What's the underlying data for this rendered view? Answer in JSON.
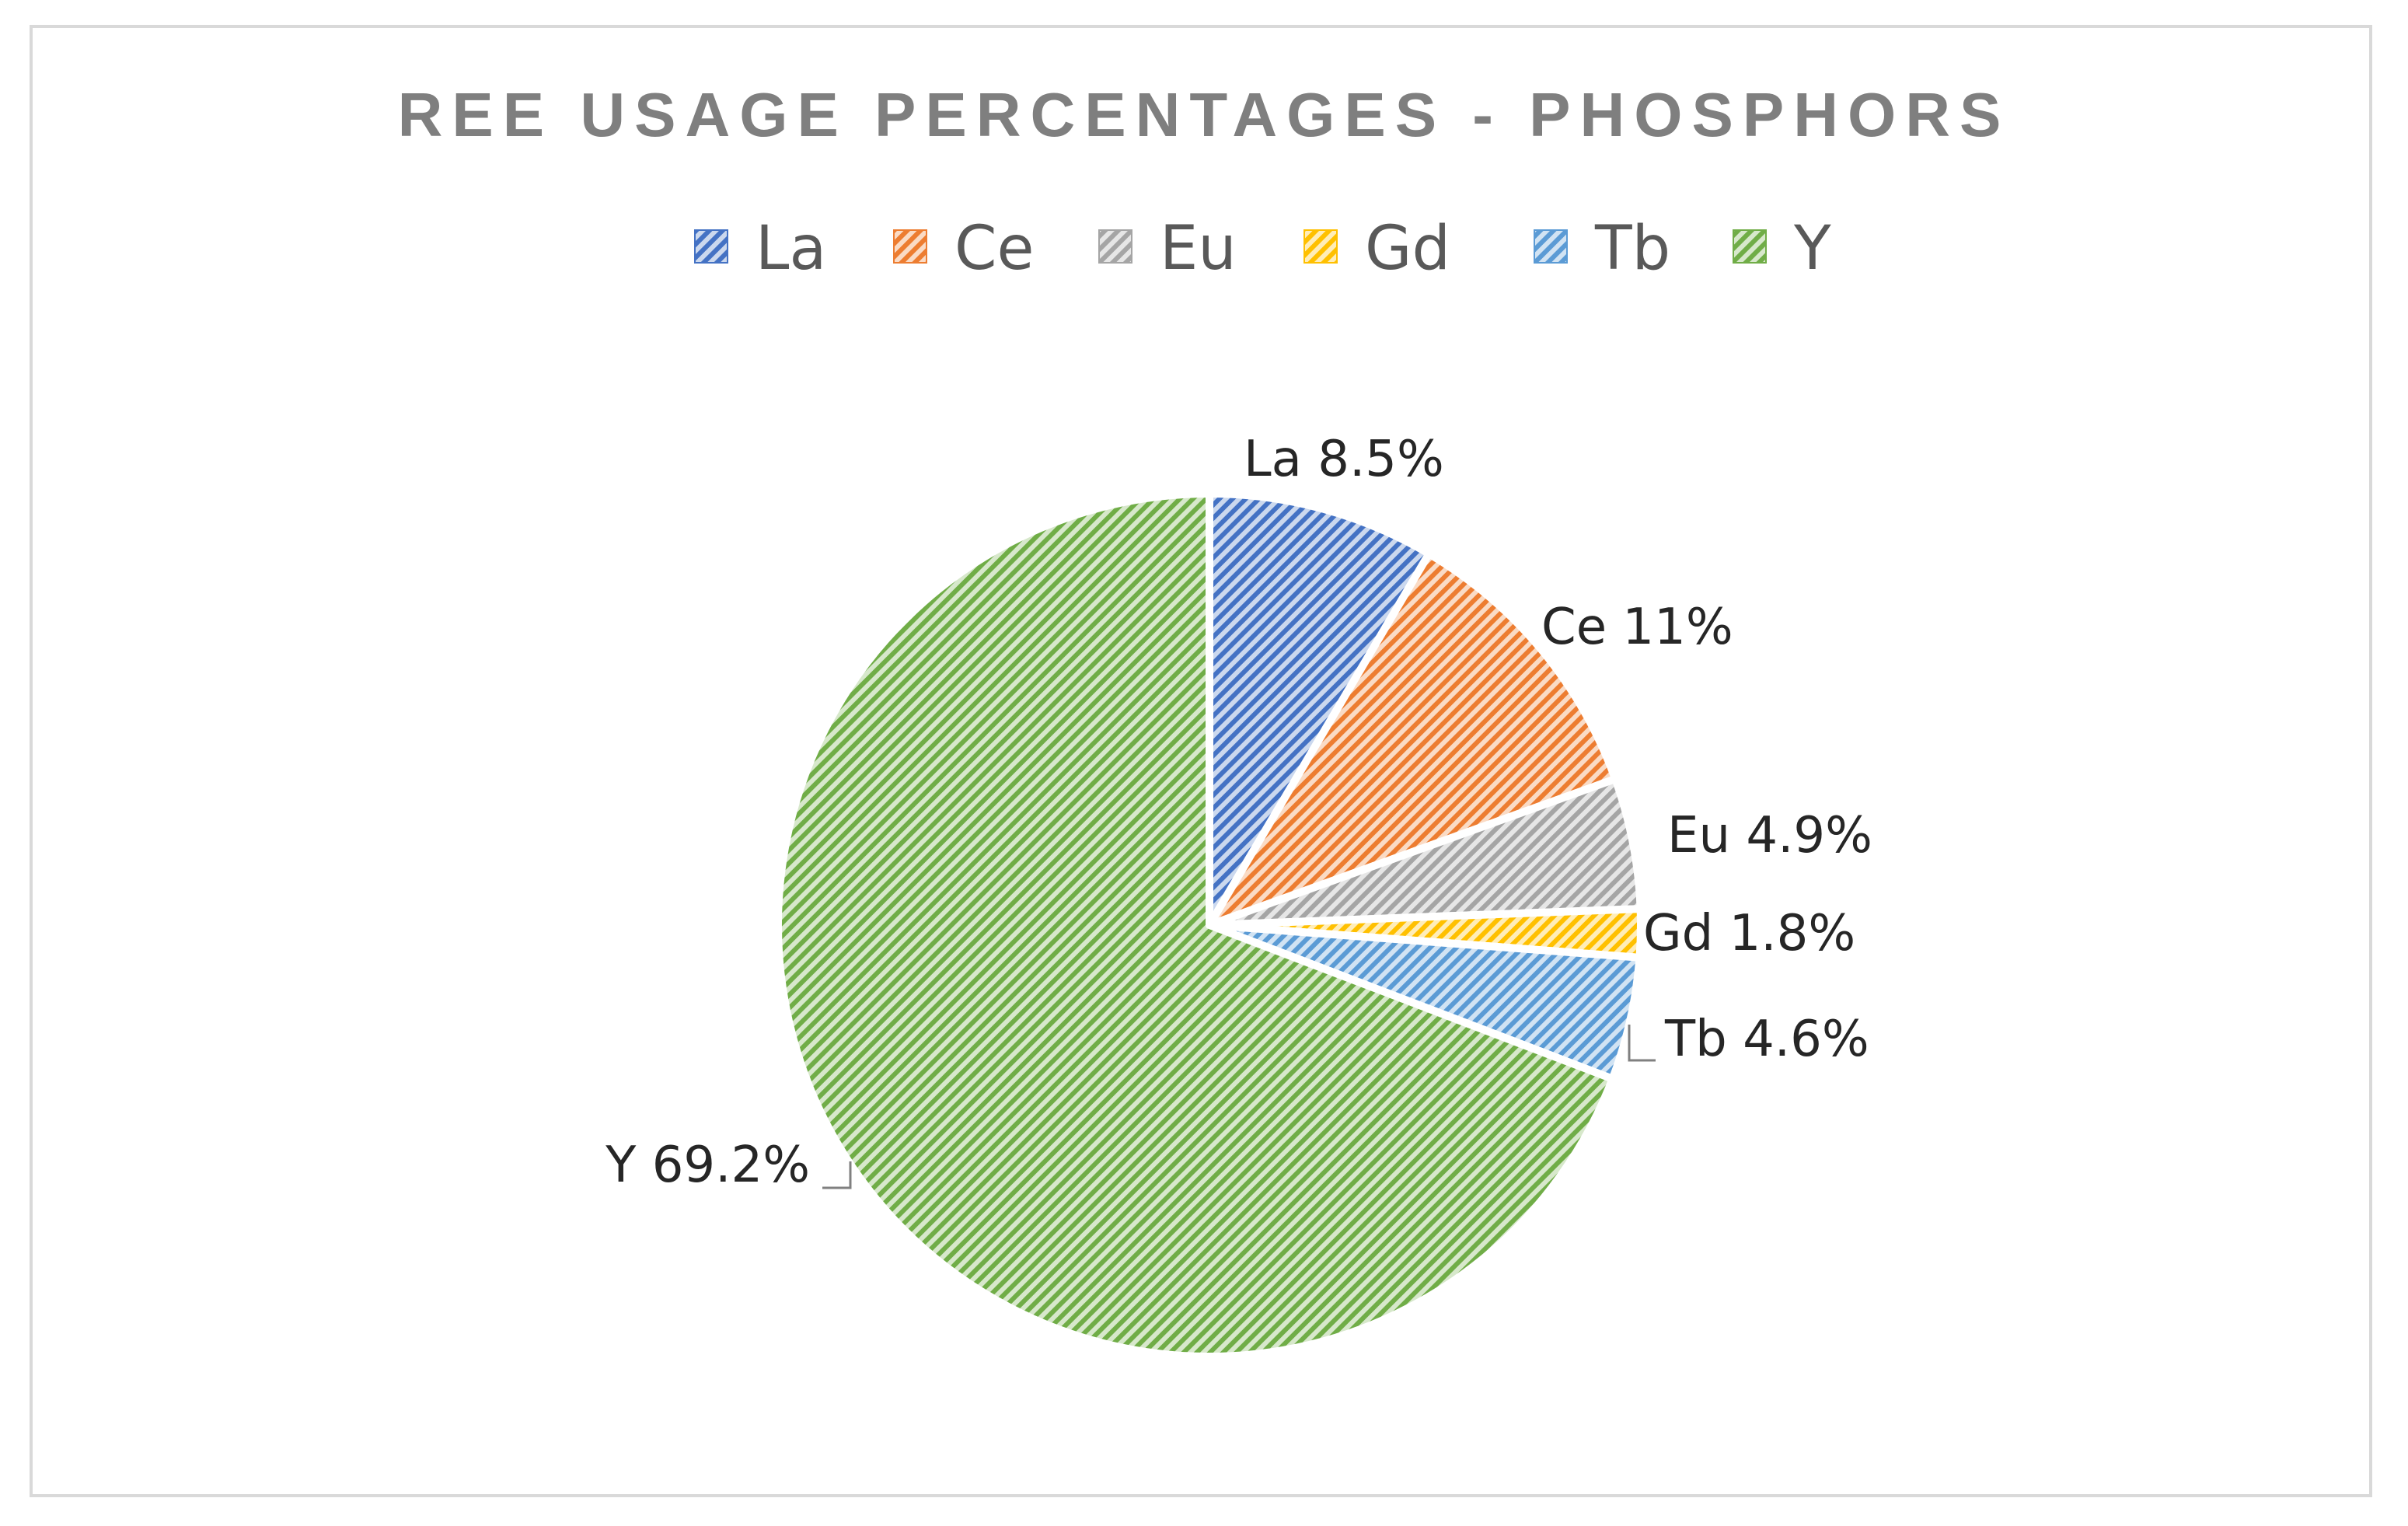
{
  "chart_data": {
    "type": "pie",
    "title": "REE USAGE PERCENTAGES - PHOSPHORS",
    "legend_position": "top",
    "categories": [
      "La",
      "Ce",
      "Eu",
      "Gd",
      "Tb",
      "Y"
    ],
    "values": [
      8.5,
      11,
      4.9,
      1.8,
      4.6,
      69.2
    ],
    "data_labels": [
      "La 8.5%",
      "Ce 11%",
      "Eu 4.9%",
      "Gd 1.8%",
      "Tb 4.6%",
      "Y 69.2%"
    ],
    "colors": [
      "#4472c4",
      "#ed7d31",
      "#a5a5a5",
      "#ffc000",
      "#5b9bd5",
      "#70ad47"
    ],
    "fill_pattern": "diagonal-hatch"
  }
}
